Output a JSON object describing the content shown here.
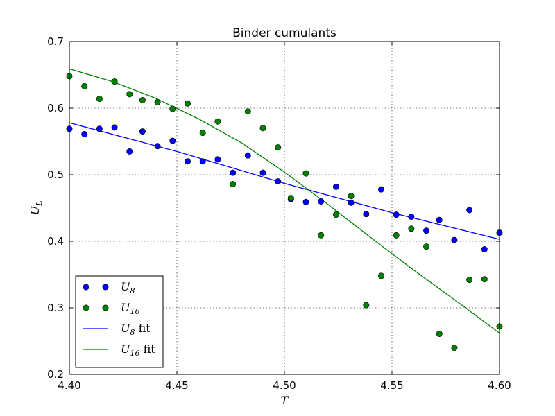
{
  "chart_data": {
    "type": "scatter",
    "title": "Binder cumulants",
    "xlabel": "T",
    "ylabel": "U_L",
    "xlim": [
      4.4,
      4.6
    ],
    "ylim": [
      0.2,
      0.7
    ],
    "x_ticks": [
      "4.40",
      "4.45",
      "4.50",
      "4.55",
      "4.60"
    ],
    "y_ticks": [
      "0.2",
      "0.3",
      "0.4",
      "0.5",
      "0.6",
      "0.7"
    ],
    "grid": true,
    "legend_position": "lower-left",
    "series": [
      {
        "name": "U_8",
        "kind": "points",
        "color": "#0000ff",
        "x": [
          4.4,
          4.407,
          4.414,
          4.421,
          4.428,
          4.434,
          4.441,
          4.448,
          4.455,
          4.462,
          4.469,
          4.476,
          4.483,
          4.49,
          4.497,
          4.503,
          4.51,
          4.517,
          4.524,
          4.531,
          4.538,
          4.545,
          4.552,
          4.559,
          4.566,
          4.572,
          4.579,
          4.586,
          4.593,
          4.6
        ],
        "y": [
          0.569,
          0.561,
          0.569,
          0.571,
          0.535,
          0.565,
          0.543,
          0.551,
          0.52,
          0.52,
          0.523,
          0.503,
          0.529,
          0.503,
          0.49,
          0.463,
          0.459,
          0.46,
          0.482,
          0.458,
          0.441,
          0.478,
          0.44,
          0.437,
          0.416,
          0.432,
          0.402,
          0.447,
          0.388,
          0.413
        ]
      },
      {
        "name": "U_16",
        "kind": "points",
        "color": "#008000",
        "x": [
          4.4,
          4.407,
          4.414,
          4.421,
          4.428,
          4.434,
          4.441,
          4.448,
          4.455,
          4.462,
          4.469,
          4.476,
          4.483,
          4.49,
          4.497,
          4.503,
          4.51,
          4.517,
          4.524,
          4.531,
          4.538,
          4.545,
          4.552,
          4.559,
          4.566,
          4.572,
          4.579,
          4.586,
          4.593,
          4.6
        ],
        "y": [
          0.648,
          0.633,
          0.614,
          0.64,
          0.621,
          0.612,
          0.609,
          0.599,
          0.607,
          0.563,
          0.58,
          0.486,
          0.595,
          0.57,
          0.541,
          0.465,
          0.502,
          0.409,
          0.44,
          0.468,
          0.304,
          0.348,
          0.409,
          0.419,
          0.392,
          0.261,
          0.24,
          0.342,
          0.343,
          0.272
        ]
      },
      {
        "name": "U_8 fit",
        "kind": "line",
        "color": "#0000ff",
        "x": [
          4.4,
          4.45,
          4.5,
          4.55,
          4.6
        ],
        "y": [
          0.578,
          0.535,
          0.487,
          0.443,
          0.403
        ]
      },
      {
        "name": "U_16 fit",
        "kind": "line",
        "color": "#008000",
        "x": [
          4.4,
          4.42,
          4.44,
          4.46,
          4.48,
          4.5,
          4.52,
          4.54,
          4.56,
          4.58,
          4.6
        ],
        "y": [
          0.659,
          0.64,
          0.615,
          0.584,
          0.548,
          0.504,
          0.456,
          0.406,
          0.357,
          0.31,
          0.262
        ]
      }
    ],
    "legend": [
      {
        "label": "U_8",
        "kind": "points",
        "color": "#0000ff"
      },
      {
        "label": "U_16",
        "kind": "points",
        "color": "#008000"
      },
      {
        "label": "U_8 fit",
        "kind": "line",
        "color": "#0000ff"
      },
      {
        "label": "U_16 fit",
        "kind": "line",
        "color": "#008000"
      }
    ]
  }
}
